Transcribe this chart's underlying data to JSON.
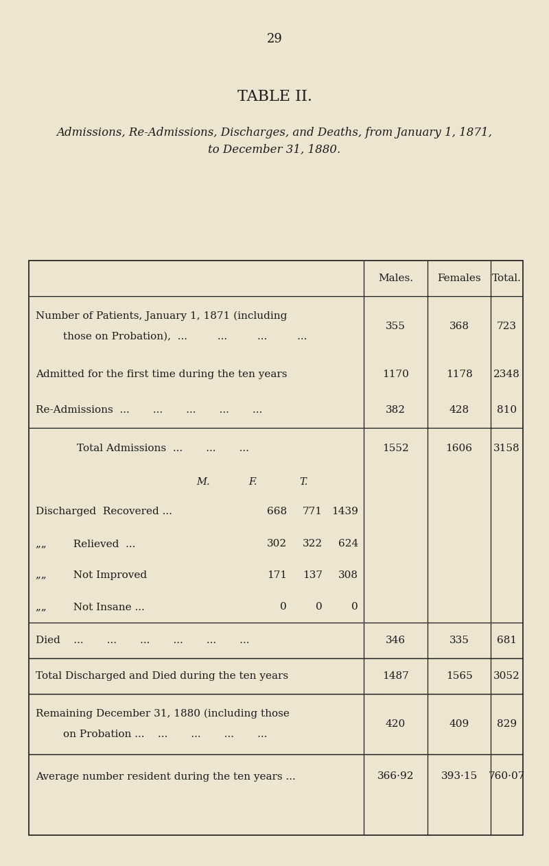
{
  "page_number": "29",
  "table_title": "TABLE II.",
  "subtitle_line1": "Admissions, Re-Admissions, Discharges, and Deaths, from January 1, 1871,",
  "subtitle_line2": "to December 31, 1880.",
  "bg_color": "#ede5d0",
  "text_color": "#1a1a1a",
  "col_headers_males": "Males.",
  "col_headers_females": "Females",
  "col_headers_total": "Total.",
  "rows": [
    {
      "type": "data2",
      "label1": "Number of Patients, January 1, 1871 (including",
      "label2": "those on Probation),  ...         ...         ...         ...",
      "indent2": true,
      "m": "355",
      "f": "368",
      "t": "723",
      "border_top": false,
      "border_bot": false
    },
    {
      "type": "data1",
      "label1": "Admitted for the first time during the ten years",
      "indent2": false,
      "m": "1170",
      "f": "1178",
      "t": "2348",
      "border_top": false,
      "border_bot": false
    },
    {
      "type": "data1",
      "label1": "Re-Admissions  ...       ...       ...       ...       ...",
      "indent2": false,
      "m": "382",
      "f": "428",
      "t": "810",
      "border_top": false,
      "border_bot": false
    },
    {
      "type": "total_admissions",
      "label1": "Total Admissions  ...       ...       ...",
      "m": "1552",
      "f": "1606",
      "t": "3158",
      "border_top": true,
      "border_bot": false
    },
    {
      "type": "sub_header"
    },
    {
      "type": "discharged",
      "prefix": "Discharged  Recovered",
      "dots": " ...",
      "cm": "668",
      "cf": "771",
      "ct": "1439"
    },
    {
      "type": "discharged",
      "prefix": "„„        Relieved",
      "dots": "  ...",
      "cm": "302",
      "cf": "322",
      "ct": "624"
    },
    {
      "type": "discharged",
      "prefix": "„„        Not Improved",
      "dots": "",
      "cm": "171",
      "cf": "137",
      "ct": "308"
    },
    {
      "type": "discharged",
      "prefix": "„„        Not Insane ...",
      "dots": "",
      "cm": "0",
      "cf": "0",
      "ct": "0"
    },
    {
      "type": "data1",
      "label1": "Died    ...       ...       ...       ...       ...       ...",
      "m": "346",
      "f": "335",
      "t": "681",
      "border_top": true,
      "border_bot": false
    },
    {
      "type": "data1",
      "label1": "Total Discharged and Died during the ten years",
      "m": "1487",
      "f": "1565",
      "t": "3052",
      "border_top": true,
      "border_bot": false
    },
    {
      "type": "data2",
      "label1": "Remaining December 31, 1880 (including those",
      "label2": "on Probation ...    ...       ...       ...       ...",
      "indent2": true,
      "m": "420",
      "f": "409",
      "t": "829",
      "border_top": true,
      "border_bot": false
    },
    {
      "type": "data1",
      "label1": "Average number resident during the ten years ...",
      "m": "366·92",
      "f": "393·15",
      "t": "760·07",
      "border_top": true,
      "border_bot": false
    }
  ]
}
